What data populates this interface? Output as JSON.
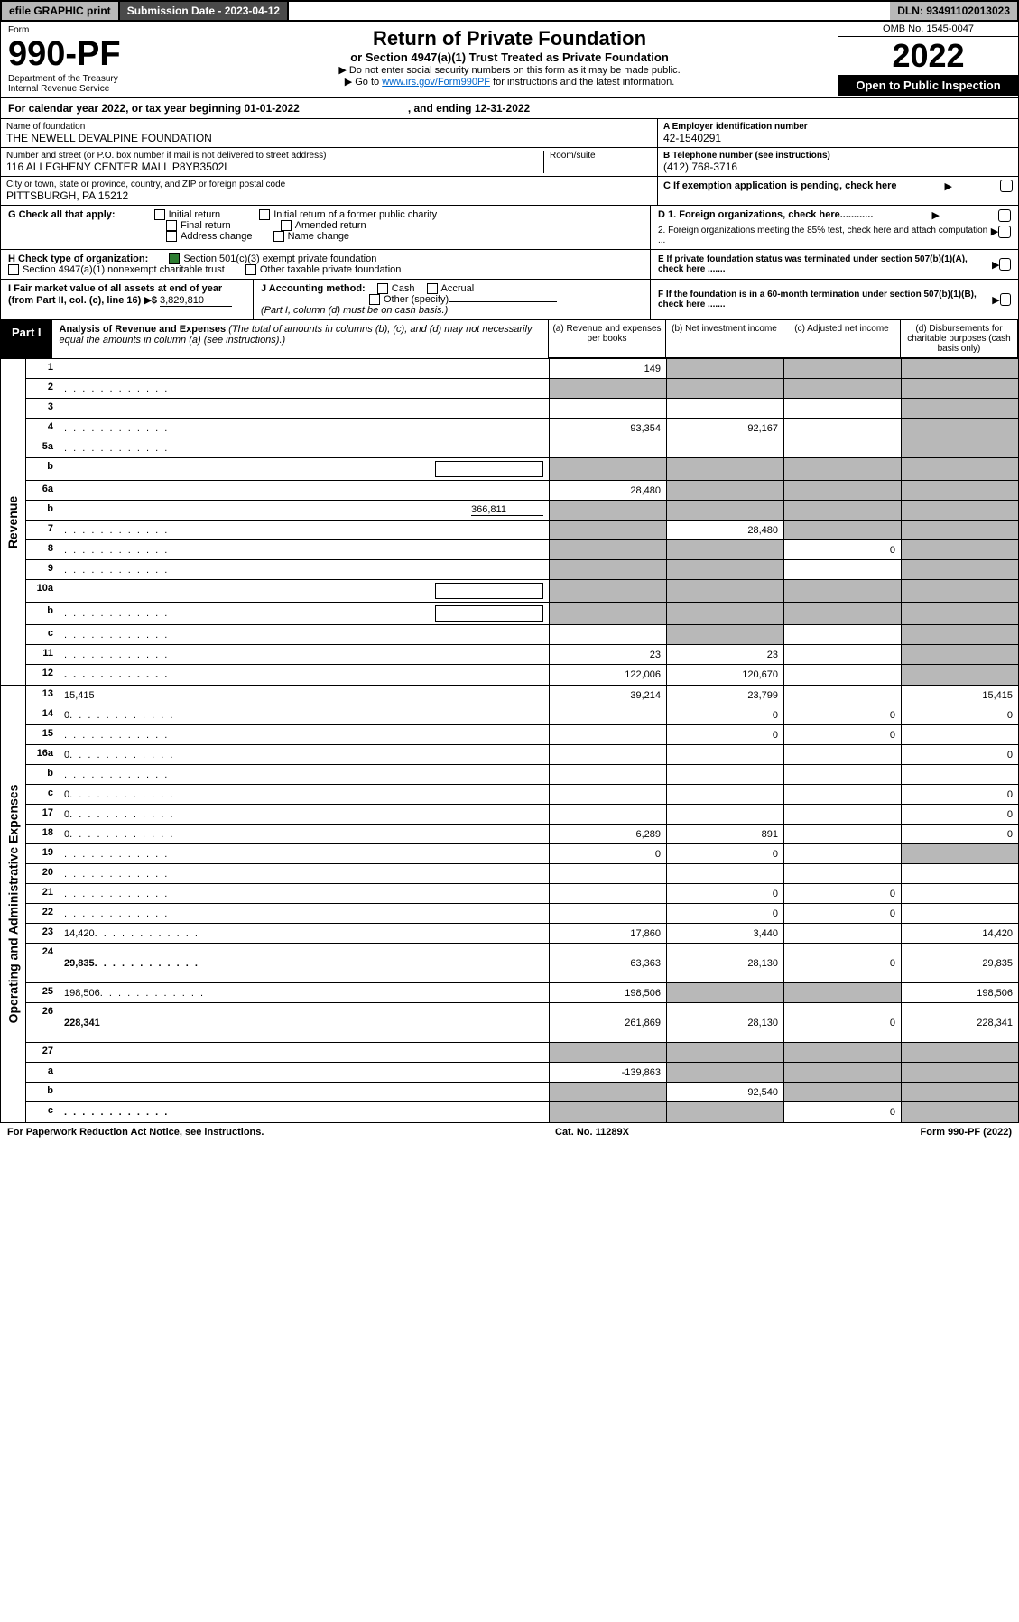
{
  "topbar": {
    "efile": "efile GRAPHIC print",
    "subdate_lbl": "Submission Date - ",
    "subdate": "2023-04-12",
    "dln_lbl": "DLN: ",
    "dln": "93491102013023"
  },
  "header": {
    "form_lbl": "Form",
    "form_num": "990-PF",
    "dept": "Department of the Treasury",
    "irs": "Internal Revenue Service",
    "title": "Return of Private Foundation",
    "subtitle": "or Section 4947(a)(1) Trust Treated as Private Foundation",
    "instr1": "▶ Do not enter social security numbers on this form as it may be made public.",
    "instr2_pre": "▶ Go to ",
    "instr2_link": "www.irs.gov/Form990PF",
    "instr2_post": " for instructions and the latest information.",
    "omb": "OMB No. 1545-0047",
    "year": "2022",
    "open": "Open to Public Inspection"
  },
  "cal": {
    "pre": "For calendar year 2022, or tax year beginning ",
    "start": "01-01-2022",
    "mid": ", and ending ",
    "end": "12-31-2022"
  },
  "info": {
    "name_lbl": "Name of foundation",
    "name": "THE NEWELL DEVALPINE FOUNDATION",
    "addr_lbl": "Number and street (or P.O. box number if mail is not delivered to street address)",
    "addr": "116 ALLEGHENY CENTER MALL P8YB3502L",
    "room_lbl": "Room/suite",
    "city_lbl": "City or town, state or province, country, and ZIP or foreign postal code",
    "city": "PITTSBURGH, PA  15212",
    "a_lbl": "A Employer identification number",
    "a": "42-1540291",
    "b_lbl": "B Telephone number (see instructions)",
    "b": "(412) 768-3716",
    "c_lbl": "C If exemption application is pending, check here"
  },
  "g": {
    "lbl": "G Check all that apply:",
    "o1": "Initial return",
    "o2": "Final return",
    "o3": "Address change",
    "o4": "Initial return of a former public charity",
    "o5": "Amended return",
    "o6": "Name change"
  },
  "d": {
    "d1": "D 1. Foreign organizations, check here............",
    "d2": "2. Foreign organizations meeting the 85% test, check here and attach computation ..."
  },
  "h": {
    "lbl": "H Check type of organization:",
    "o1": "Section 501(c)(3) exempt private foundation",
    "o2": "Section 4947(a)(1) nonexempt charitable trust",
    "o3": "Other taxable private foundation"
  },
  "e": {
    "txt": "E If private foundation status was terminated under section 507(b)(1)(A), check here ......."
  },
  "i": {
    "lbl": "I Fair market value of all assets at end of year (from Part II, col. (c), line 16) ▶$ ",
    "val": "3,829,810"
  },
  "j": {
    "lbl": "J Accounting method:",
    "o1": "Cash",
    "o2": "Accrual",
    "o3": "Other (specify)",
    "note": "(Part I, column (d) must be on cash basis.)"
  },
  "f": {
    "txt": "F If the foundation is in a 60-month termination under section 507(b)(1)(B), check here ......."
  },
  "part1": {
    "tag": "Part I",
    "title": "Analysis of Revenue and Expenses ",
    "note": "(The total of amounts in columns (b), (c), and (d) may not necessarily equal the amounts in column (a) (see instructions).)",
    "ca": "(a) Revenue and expenses per books",
    "cb": "(b) Net investment income",
    "cc": "(c) Adjusted net income",
    "cd": "(d) Disbursements for charitable purposes (cash basis only)"
  },
  "side": {
    "rev": "Revenue",
    "exp": "Operating and Administrative Expenses"
  },
  "rows": [
    {
      "n": "1",
      "d": "",
      "a": "149",
      "b": "",
      "c": "",
      "sha": false,
      "shb": true,
      "shc": true,
      "shd": true
    },
    {
      "n": "2",
      "d": "",
      "dots": true,
      "a": "",
      "b": "",
      "c": "",
      "sha": true,
      "shb": true,
      "shc": true,
      "shd": true
    },
    {
      "n": "3",
      "d": "",
      "a": "",
      "b": "",
      "c": "",
      "shd": true
    },
    {
      "n": "4",
      "d": "",
      "dots": true,
      "a": "93,354",
      "b": "92,167",
      "c": "",
      "shd": true
    },
    {
      "n": "5a",
      "d": "",
      "dots": true,
      "a": "",
      "b": "",
      "c": "",
      "shd": true
    },
    {
      "n": "b",
      "d": "",
      "box": true,
      "a": "",
      "b": "",
      "c": "",
      "sha": true,
      "shb": true,
      "shc": true,
      "shd": true
    },
    {
      "n": "6a",
      "d": "",
      "a": "28,480",
      "b": "",
      "c": "",
      "shb": true,
      "shc": true,
      "shd": true
    },
    {
      "n": "b",
      "d": "",
      "inline": "366,811",
      "a": "",
      "b": "",
      "c": "",
      "sha": true,
      "shb": true,
      "shc": true,
      "shd": true
    },
    {
      "n": "7",
      "d": "",
      "dots": true,
      "a": "",
      "b": "28,480",
      "c": "",
      "sha": true,
      "shc": true,
      "shd": true
    },
    {
      "n": "8",
      "d": "",
      "dots": true,
      "a": "",
      "b": "",
      "c": "0",
      "sha": true,
      "shb": true,
      "shd": true
    },
    {
      "n": "9",
      "d": "",
      "dots": true,
      "a": "",
      "b": "",
      "c": "",
      "sha": true,
      "shb": true,
      "shd": true
    },
    {
      "n": "10a",
      "d": "",
      "box": true,
      "a": "",
      "b": "",
      "c": "",
      "sha": true,
      "shb": true,
      "shc": true,
      "shd": true
    },
    {
      "n": "b",
      "d": "",
      "dots": true,
      "box": true,
      "a": "",
      "b": "",
      "c": "",
      "sha": true,
      "shb": true,
      "shc": true,
      "shd": true
    },
    {
      "n": "c",
      "d": "",
      "dots": true,
      "a": "",
      "b": "",
      "c": "",
      "shb": true,
      "shd": true
    },
    {
      "n": "11",
      "d": "",
      "dots": true,
      "a": "23",
      "b": "23",
      "c": "",
      "shd": true
    },
    {
      "n": "12",
      "d": "",
      "dots": true,
      "bold": true,
      "a": "122,006",
      "b": "120,670",
      "c": "",
      "shd": true
    }
  ],
  "exprows": [
    {
      "n": "13",
      "d": "15,415",
      "a": "39,214",
      "b": "23,799",
      "c": ""
    },
    {
      "n": "14",
      "d": "0",
      "dots": true,
      "a": "",
      "b": "0",
      "c": "0"
    },
    {
      "n": "15",
      "d": "",
      "dots": true,
      "a": "",
      "b": "0",
      "c": "0"
    },
    {
      "n": "16a",
      "d": "0",
      "dots": true,
      "a": "",
      "b": "",
      "c": ""
    },
    {
      "n": "b",
      "d": "",
      "dots": true,
      "a": "",
      "b": "",
      "c": ""
    },
    {
      "n": "c",
      "d": "0",
      "dots": true,
      "a": "",
      "b": "",
      "c": ""
    },
    {
      "n": "17",
      "d": "0",
      "dots": true,
      "a": "",
      "b": "",
      "c": ""
    },
    {
      "n": "18",
      "d": "0",
      "dots": true,
      "a": "6,289",
      "b": "891",
      "c": ""
    },
    {
      "n": "19",
      "d": "",
      "dots": true,
      "a": "0",
      "b": "0",
      "c": "",
      "shd": true
    },
    {
      "n": "20",
      "d": "",
      "dots": true,
      "a": "",
      "b": "",
      "c": ""
    },
    {
      "n": "21",
      "d": "",
      "dots": true,
      "a": "",
      "b": "0",
      "c": "0"
    },
    {
      "n": "22",
      "d": "",
      "dots": true,
      "a": "",
      "b": "0",
      "c": "0"
    },
    {
      "n": "23",
      "d": "14,420",
      "dots": true,
      "a": "17,860",
      "b": "3,440",
      "c": ""
    },
    {
      "n": "24",
      "d": "29,835",
      "dots": true,
      "bold": true,
      "a": "63,363",
      "b": "28,130",
      "c": "0",
      "tall": true
    },
    {
      "n": "25",
      "d": "198,506",
      "dots": true,
      "a": "198,506",
      "b": "",
      "c": "",
      "shb": true,
      "shc": true
    },
    {
      "n": "26",
      "d": "228,341",
      "bold": true,
      "a": "261,869",
      "b": "28,130",
      "c": "0",
      "tall": true
    },
    {
      "n": "27",
      "d": "",
      "a": "",
      "b": "",
      "c": "",
      "sha": true,
      "shb": true,
      "shc": true,
      "shd": true
    },
    {
      "n": "a",
      "d": "",
      "bold": true,
      "a": "-139,863",
      "b": "",
      "c": "",
      "shb": true,
      "shc": true,
      "shd": true
    },
    {
      "n": "b",
      "d": "",
      "bold": true,
      "a": "",
      "b": "92,540",
      "c": "",
      "sha": true,
      "shc": true,
      "shd": true
    },
    {
      "n": "c",
      "d": "",
      "dots": true,
      "bold": true,
      "a": "",
      "b": "",
      "c": "0",
      "sha": true,
      "shb": true,
      "shd": true
    }
  ],
  "footer": {
    "l": "For Paperwork Reduction Act Notice, see instructions.",
    "c": "Cat. No. 11289X",
    "r": "Form 990-PF (2022)"
  }
}
